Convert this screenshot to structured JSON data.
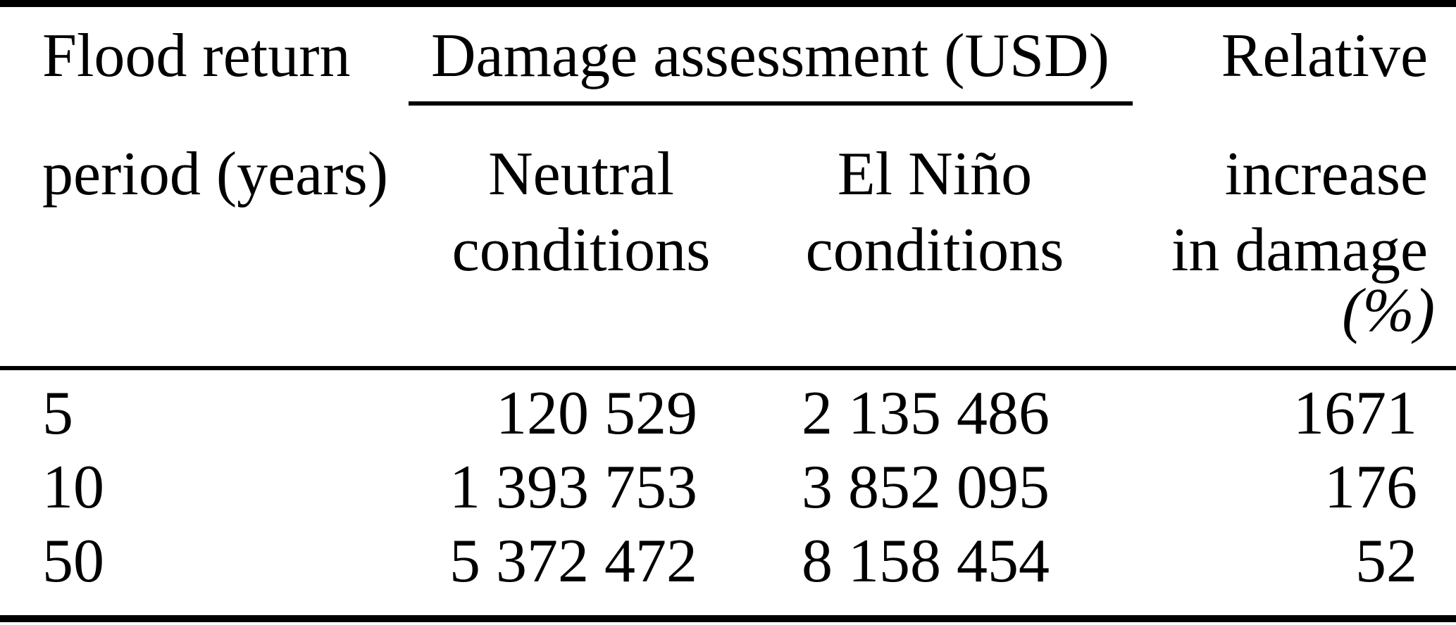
{
  "table": {
    "colors": {
      "background": "#ffffff",
      "text": "#000000",
      "rule": "#000000"
    },
    "group_header": {
      "label": "Damage assessment (USD)",
      "spans": [
        "neutral",
        "el_nino"
      ]
    },
    "columns": [
      {
        "id": "return_period",
        "header_lines": [
          "Flood return",
          "period (years)"
        ]
      },
      {
        "id": "neutral",
        "header_lines": [
          "Neutral",
          "conditions"
        ]
      },
      {
        "id": "el_nino",
        "header_lines": [
          "El Niño",
          "conditions"
        ]
      },
      {
        "id": "relative_increase",
        "header_lines": [
          "Relative",
          "increase",
          "in damage",
          "(%)"
        ]
      }
    ],
    "rows": [
      {
        "return_period": "5",
        "neutral": "120 529",
        "el_nino": "2 135 486",
        "relative_increase": "1671"
      },
      {
        "return_period": "10",
        "neutral": "1 393 753",
        "el_nino": "3 852 095",
        "relative_increase": "176"
      },
      {
        "return_period": "50",
        "neutral": "5 372 472",
        "el_nino": "8 158 454",
        "relative_increase": "52"
      }
    ]
  },
  "chart_data": {
    "type": "table",
    "title": "",
    "columns": [
      "Flood return period (years)",
      "Damage assessment (USD) – Neutral conditions",
      "Damage assessment (USD) – El Niño conditions",
      "Relative increase in damage (%)"
    ],
    "rows": [
      [
        5,
        120529,
        2135486,
        1671
      ],
      [
        10,
        1393753,
        3852095,
        176
      ],
      [
        50,
        5372472,
        8158454,
        52
      ]
    ]
  }
}
